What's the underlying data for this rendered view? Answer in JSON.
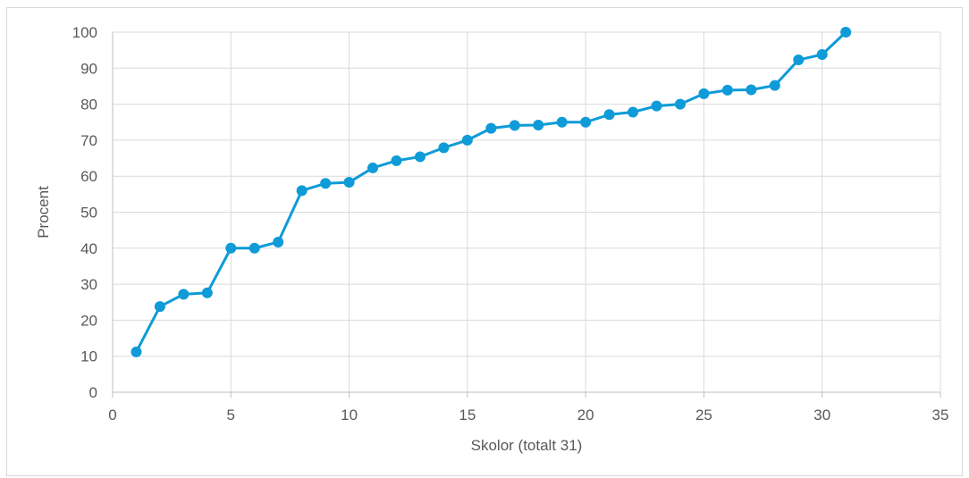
{
  "chart_data": {
    "type": "scatter",
    "title": "",
    "xlabel": "Skolor (totalt 31)",
    "ylabel": "Procent",
    "xlim": [
      0,
      35
    ],
    "ylim": [
      0,
      100
    ],
    "x_ticks": [
      0,
      5,
      10,
      15,
      20,
      25,
      30,
      35
    ],
    "y_ticks": [
      0,
      10,
      20,
      30,
      40,
      50,
      60,
      70,
      80,
      90,
      100
    ],
    "grid": true,
    "legend": "none",
    "style": "line-with-markers",
    "colors": {
      "series": "#0e9bd8",
      "grid": "#d9d9d9",
      "axis": "#bfbfbf",
      "text": "#595959",
      "frame": "#d9d9d9"
    },
    "series": [
      {
        "x": [
          1,
          2,
          3,
          4,
          5,
          6,
          7,
          8,
          9,
          10,
          11,
          12,
          13,
          14,
          15,
          16,
          17,
          18,
          19,
          20,
          21,
          22,
          23,
          24,
          25,
          26,
          27,
          28,
          29,
          30,
          31
        ],
        "y": [
          11.2,
          23.8,
          27.2,
          27.6,
          40.0,
          40.0,
          41.7,
          56.0,
          58.0,
          58.3,
          62.3,
          64.3,
          65.4,
          67.9,
          70.0,
          73.3,
          74.1,
          74.2,
          75.0,
          75.0,
          77.1,
          77.8,
          79.5,
          80.0,
          82.9,
          83.9,
          84.0,
          85.2,
          92.3,
          93.8,
          100.0
        ]
      }
    ]
  }
}
